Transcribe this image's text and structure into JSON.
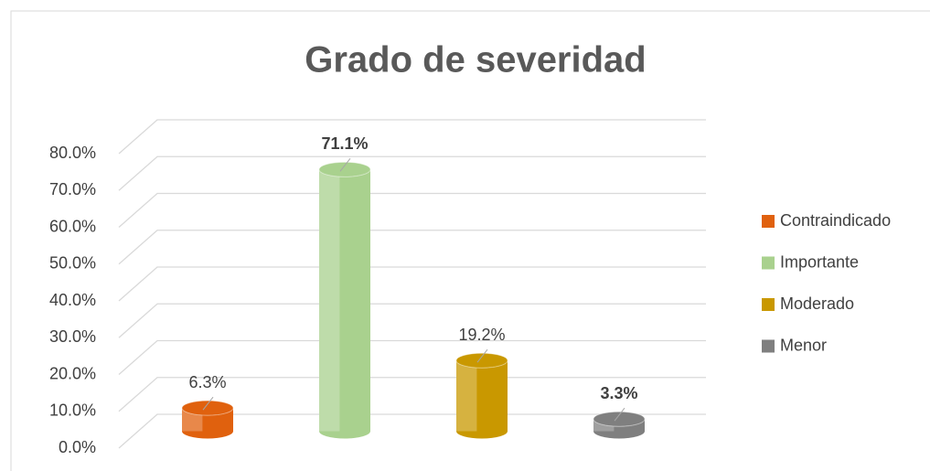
{
  "chart_data": {
    "type": "bar3d",
    "title": "Grado de severidad",
    "series": [
      {
        "name": "Contraindicado",
        "color": "#e0610e",
        "values": [
          6.3
        ],
        "value_labels": [
          "6.3%"
        ],
        "label_bold": false
      },
      {
        "name": "Importante",
        "color": "#a9d18e",
        "values": [
          71.1
        ],
        "value_labels": [
          "71.1%"
        ],
        "label_bold": true
      },
      {
        "name": "Moderado",
        "color": "#c99800",
        "values": [
          19.2
        ],
        "value_labels": [
          "19.2%"
        ],
        "label_bold": false
      },
      {
        "name": "Menor",
        "color": "#7f7f7f",
        "values": [
          3.3
        ],
        "value_labels": [
          "3.3%"
        ],
        "label_bold": true
      }
    ],
    "ylim": [
      0,
      80
    ],
    "yticks": [
      {
        "value": 0,
        "label": "0.0%"
      },
      {
        "value": 10,
        "label": "10.0%"
      },
      {
        "value": 20,
        "label": "20.0%"
      },
      {
        "value": 30,
        "label": "30.0%"
      },
      {
        "value": 40,
        "label": "40.0%"
      },
      {
        "value": 50,
        "label": "50.0%"
      },
      {
        "value": 60,
        "label": "60.0%"
      },
      {
        "value": 70,
        "label": "70.0%"
      },
      {
        "value": 80,
        "label": "80.0%"
      }
    ],
    "grid": true,
    "legend": "right"
  }
}
